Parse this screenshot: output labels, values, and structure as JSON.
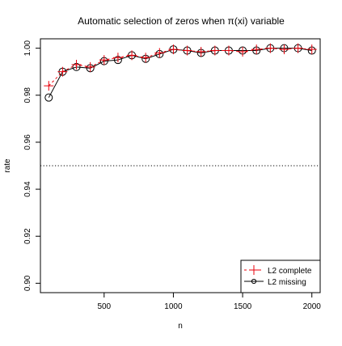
{
  "chart_data": {
    "type": "line",
    "title": "Automatic selection of zeros when π(xi) variable",
    "xlabel": "n",
    "ylabel": "rate",
    "xlim": [
      40,
      2060
    ],
    "ylim": [
      0.896,
      1.004
    ],
    "x_ticks": [
      {
        "value": 500,
        "label": "500"
      },
      {
        "value": 1000,
        "label": "1000"
      },
      {
        "value": 1500,
        "label": "1500"
      },
      {
        "value": 2000,
        "label": "2000"
      }
    ],
    "y_ticks": [
      {
        "value": 0.9,
        "label": "0.90"
      },
      {
        "value": 0.92,
        "label": "0.92"
      },
      {
        "value": 0.94,
        "label": "0.94"
      },
      {
        "value": 0.96,
        "label": "0.96"
      },
      {
        "value": 0.98,
        "label": "0.98"
      },
      {
        "value": 1.0,
        "label": "1.00"
      }
    ],
    "reference_line": {
      "y": 0.95,
      "style": "dotted",
      "color": "#000000"
    },
    "x": [
      100,
      200,
      300,
      400,
      500,
      600,
      700,
      800,
      900,
      1000,
      1100,
      1200,
      1300,
      1400,
      1500,
      1600,
      1700,
      1800,
      1900,
      2000
    ],
    "series": [
      {
        "name": "L2 complete",
        "color": "#e8000b",
        "line_style": "dashed",
        "marker": "plus",
        "values": [
          0.984,
          0.99,
          0.993,
          0.992,
          0.995,
          0.996,
          0.997,
          0.996,
          0.998,
          0.9995,
          0.999,
          0.9985,
          0.999,
          0.999,
          0.9985,
          0.9995,
          1.0,
          0.9995,
          1.0,
          0.9995
        ]
      },
      {
        "name": "L2 missing",
        "color": "#000000",
        "line_style": "solid",
        "marker": "circle",
        "values": [
          0.979,
          0.99,
          0.992,
          0.9915,
          0.9945,
          0.995,
          0.997,
          0.9955,
          0.9975,
          0.9995,
          0.999,
          0.998,
          0.999,
          0.999,
          0.999,
          0.999,
          1.0,
          1.0,
          1.0,
          0.999
        ]
      }
    ],
    "legend_position": "bottom-right",
    "grid": false
  }
}
